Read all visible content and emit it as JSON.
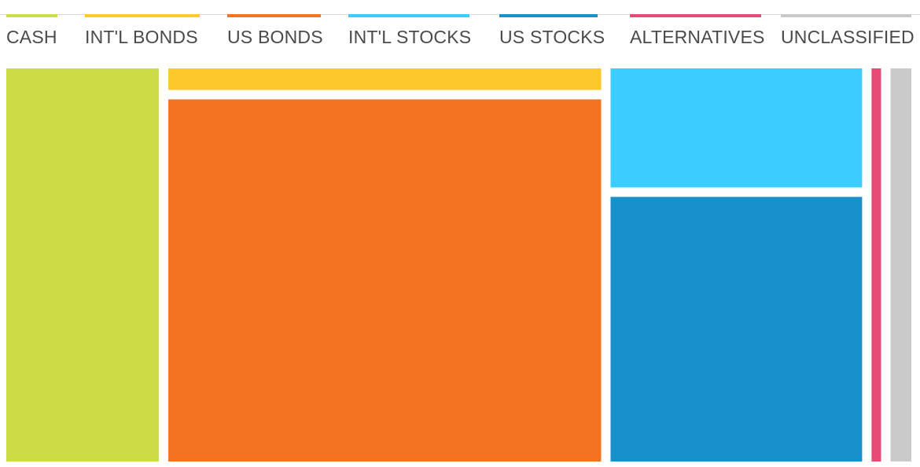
{
  "chart_data": {
    "type": "treemap",
    "legend_placement": "top",
    "categories": [
      {
        "name": "CASH",
        "color": "#cbdc44",
        "value": 17.6
      },
      {
        "name": "INT'L BONDS",
        "color": "#fdc82a",
        "value": 2.8
      },
      {
        "name": "US BONDS",
        "color": "#f47322",
        "value": 47.1
      },
      {
        "name": "INT'L STOCKS",
        "color": "#3ccdff",
        "value": 9.0
      },
      {
        "name": "US STOCKS",
        "color": "#1890cc",
        "value": 20.0
      },
      {
        "name": "ALTERNATIVES",
        "color": "#e84a76",
        "value": 1.1
      },
      {
        "name": "UNCLASSIFIED",
        "color": "#cacaca",
        "value": 2.4
      }
    ],
    "legend_line_base_color": "#d9d9d9"
  }
}
